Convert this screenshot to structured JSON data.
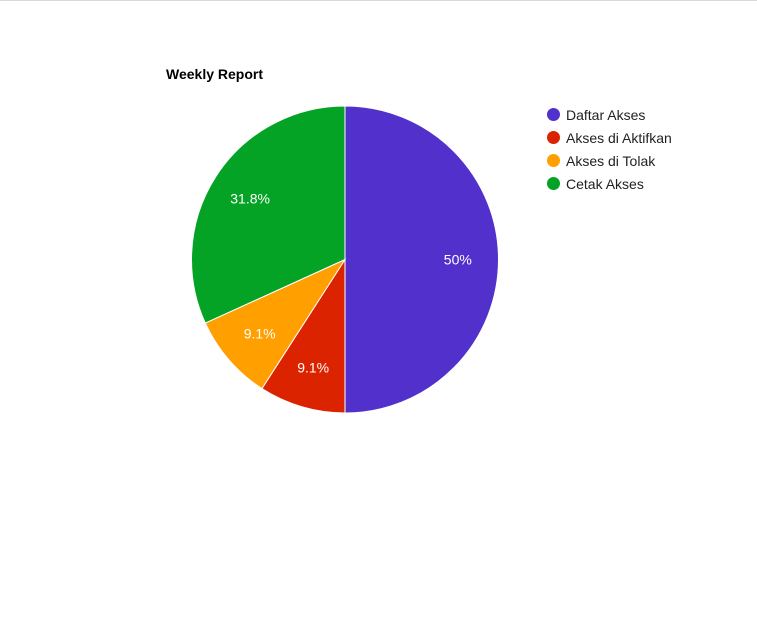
{
  "chart_data": {
    "type": "pie",
    "title": "Weekly Report",
    "legend_position": "right",
    "slices": [
      {
        "label": "Daftar Akses",
        "value": 50.0,
        "percent_label": "50%",
        "color": "#5230cc"
      },
      {
        "label": "Akses di Aktifkan",
        "value": 9.1,
        "percent_label": "9.1%",
        "color": "#dc2300"
      },
      {
        "label": "Akses di Tolak",
        "value": 9.1,
        "percent_label": "9.1%",
        "color": "#ff9f00"
      },
      {
        "label": "Cetak Akses",
        "value": 31.8,
        "percent_label": "31.8%",
        "color": "#04a326"
      }
    ]
  }
}
